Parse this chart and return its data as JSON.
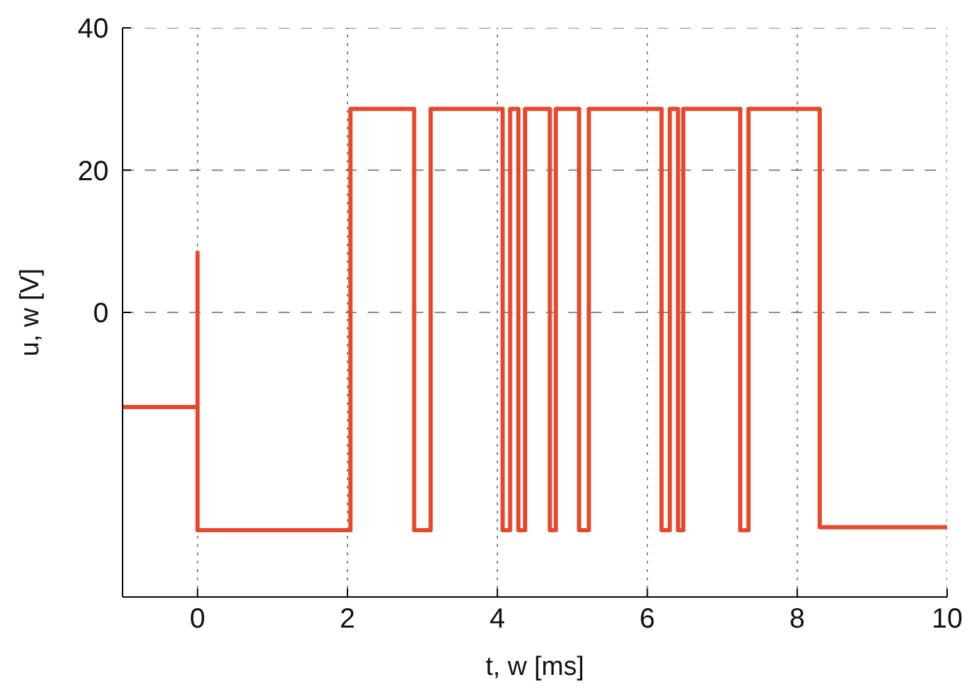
{
  "chart_data": {
    "type": "step",
    "xlabel": "t, w [ms]",
    "ylabel": "u, w [V]",
    "x": [
      -1,
      0,
      0,
      2.04,
      2.89,
      3.11,
      4.07,
      4.17,
      4.28,
      4.37,
      4.7,
      4.78,
      5.09,
      5.22,
      6.19,
      6.3,
      6.41,
      6.48,
      7.24,
      7.35,
      8.3,
      10
    ],
    "series": [
      {
        "color": "#e8472a",
        "values": [
          -13.3,
          8.4,
          -30.6,
          28.6,
          -30.6,
          28.6,
          -30.6,
          28.6,
          -30.6,
          28.6,
          -30.6,
          28.6,
          -30.6,
          28.6,
          -30.6,
          28.6,
          -30.6,
          28.6,
          -30.6,
          28.6,
          -30.2,
          -30.2
        ]
      }
    ],
    "xlim": [
      -1,
      10
    ],
    "xticks": [
      0,
      2,
      4,
      6,
      8,
      10
    ],
    "ylim": [
      -40,
      40
    ],
    "yticks": [
      0,
      20,
      40
    ],
    "grid": true
  }
}
